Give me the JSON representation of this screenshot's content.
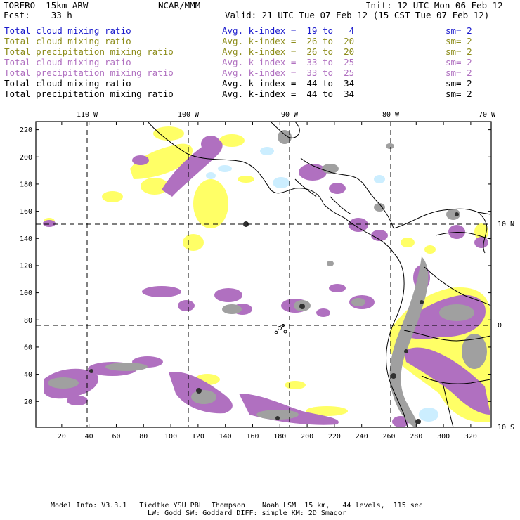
{
  "header": {
    "model": "TORERO  15km ARW",
    "org": "NCAR/MMM",
    "init": "Init: 12 UTC Mon 06 Feb 12",
    "fcst": "Fcst:    33 h",
    "valid": "Valid: 21 UTC Tue 07 Feb 12 (15 CST Tue 07 Feb 12)"
  },
  "legend": [
    {
      "label": "Total cloud mixing ratio",
      "kidx": "Avg. k-index =  19 to   4",
      "sm": "sm= 2",
      "color": "#1a1acc"
    },
    {
      "label": "Total cloud mixing ratio",
      "kidx": "Avg. k-index =  26 to  20",
      "sm": "sm= 2",
      "color": "#8c8c1a"
    },
    {
      "label": "Total precipitation mixing ratio",
      "kidx": "Avg. k-index =  26 to  20",
      "sm": "sm= 2",
      "color": "#8c8c1a"
    },
    {
      "label": "Total cloud mixing ratio",
      "kidx": "Avg. k-index =  33 to  25",
      "sm": "sm= 2",
      "color": "#b070c0"
    },
    {
      "label": "Total precipitation mixing ratio",
      "kidx": "Avg. k-index =  33 to  25",
      "sm": "sm= 2",
      "color": "#b070c0"
    },
    {
      "label": "Total cloud mixing ratio",
      "kidx": "Avg. k-index =  44 to  34",
      "sm": "sm= 2",
      "color": "#000000"
    },
    {
      "label": "Total precipitation mixing ratio",
      "kidx": "Avg. k-index =  44 to  34",
      "sm": "sm= 2",
      "color": "#000000"
    }
  ],
  "map": {
    "lon_labels": [
      "110 W",
      "100 W",
      "90 W",
      "80 W",
      "70 W"
    ],
    "lat_labels": [
      "10 N",
      "0",
      "10 S"
    ],
    "y_ticks": [
      "220",
      "200",
      "180",
      "160",
      "140",
      "120",
      "100",
      "80",
      "60",
      "40",
      "20"
    ],
    "x_ticks": [
      "20",
      "40",
      "60",
      "80",
      "100",
      "120",
      "140",
      "160",
      "180",
      "200",
      "220",
      "240",
      "260",
      "280",
      "300",
      "320"
    ],
    "x_range": [
      1,
      335
    ],
    "y_range": [
      1,
      226
    ]
  },
  "footer": {
    "line1": "Model Info: V3.3.1   Tiedtke YSU PBL  Thompson    Noah LSM  15 km,   44 levels,  115 sec",
    "line2": "LW: Godd SW: Goddard DIFF: simple KM: 2D Smagor"
  },
  "colors": {
    "yellow": "#ffff66",
    "purple": "#b070c0",
    "gray": "#a0a0a0",
    "lightblue": "#cceeff"
  }
}
